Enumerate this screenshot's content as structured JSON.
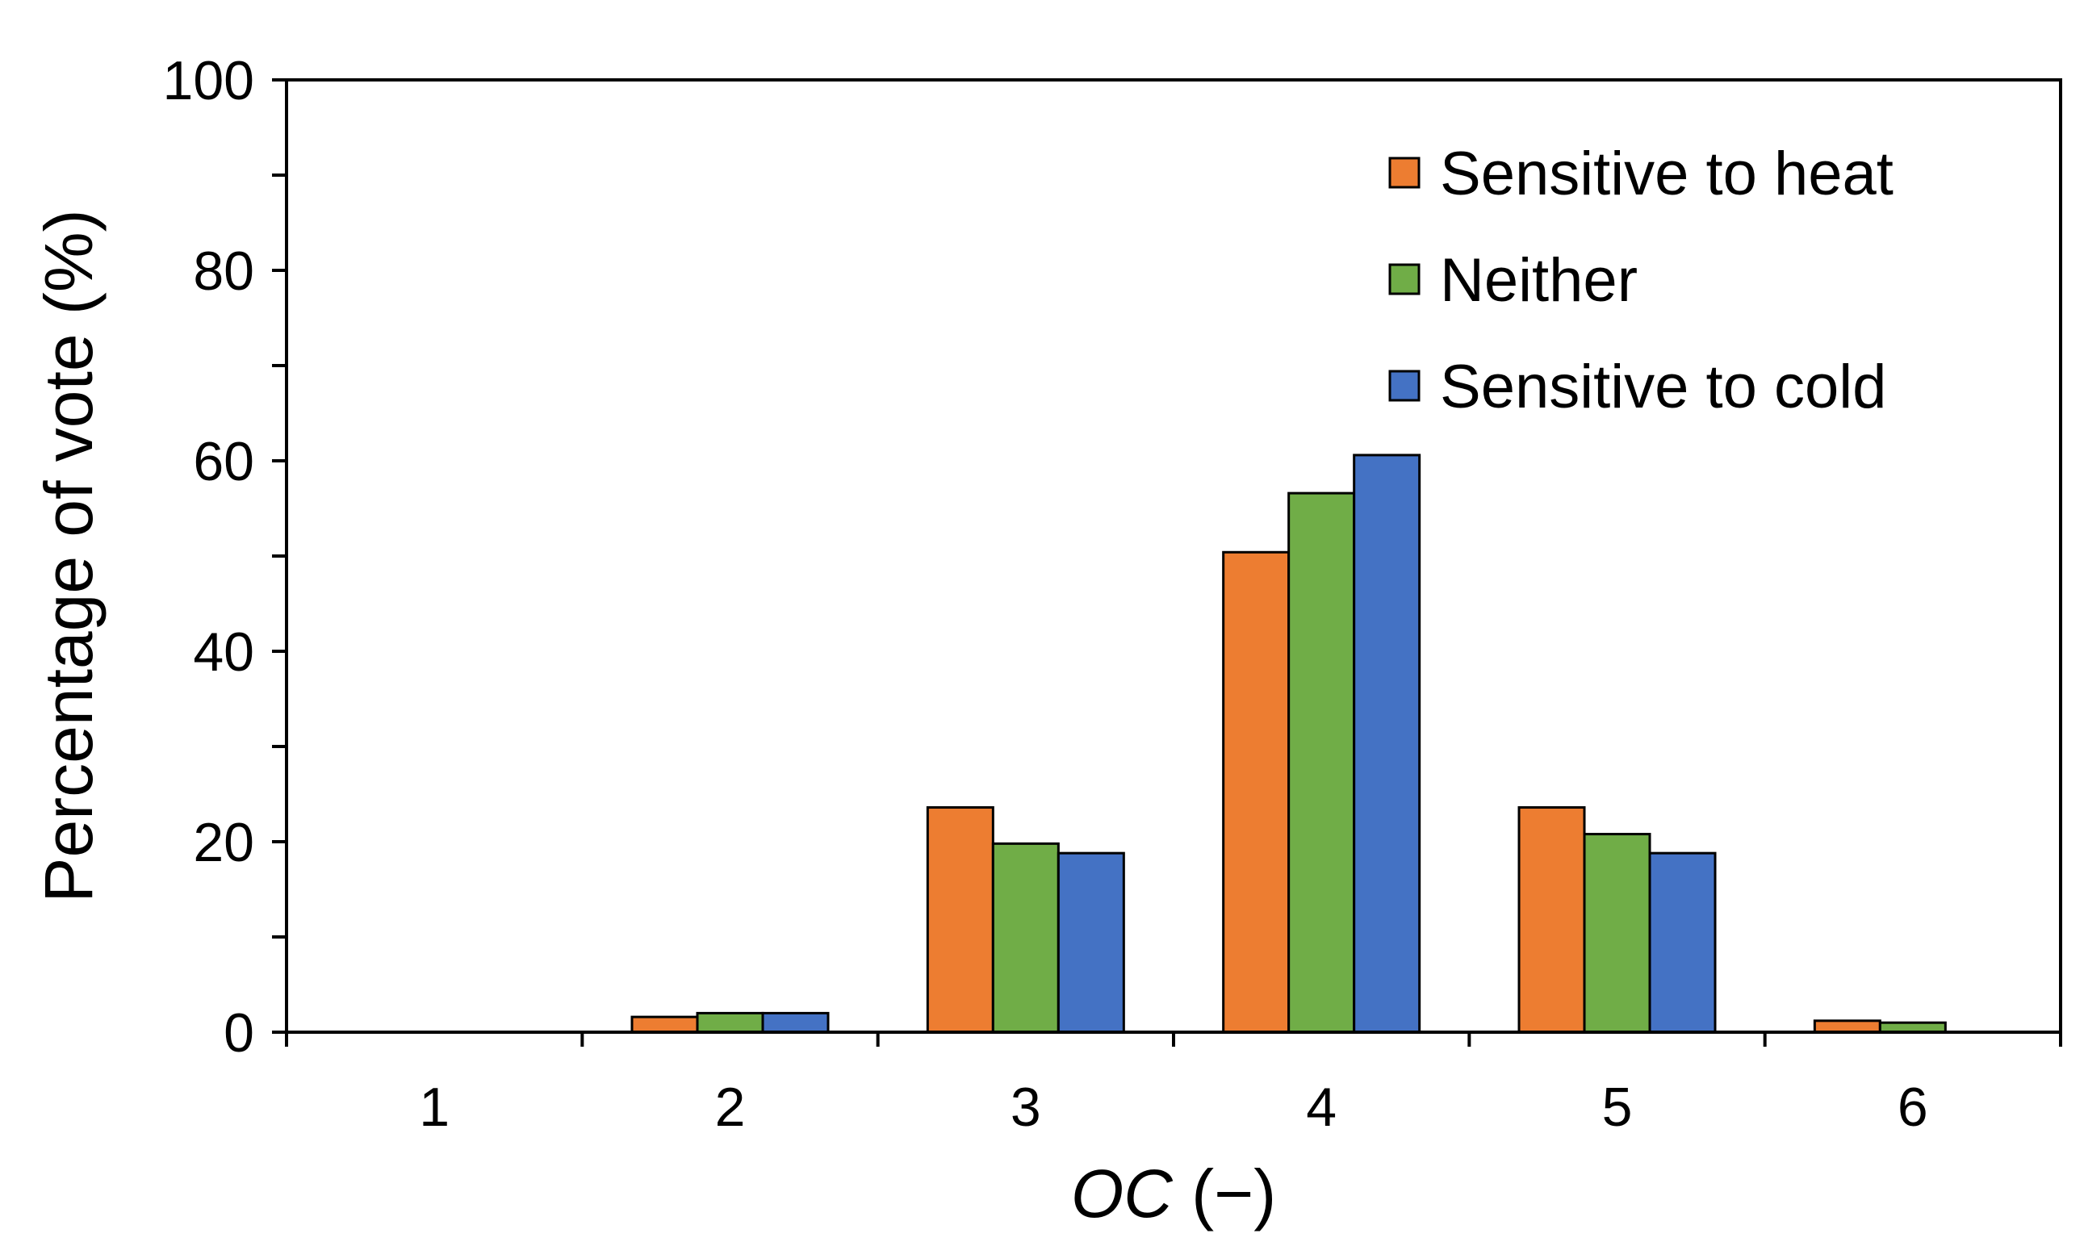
{
  "chart_data": {
    "type": "bar",
    "title": "",
    "xlabel_italic": "OC",
    "xlabel_rest": " (−)",
    "ylabel": "Percentage of vote (%)",
    "ylim": [
      0,
      100
    ],
    "y_major_ticks": [
      0,
      20,
      40,
      60,
      80,
      100
    ],
    "y_minor_step": 10,
    "grid": false,
    "legend_position": "top-right",
    "categories": [
      "1",
      "2",
      "3",
      "4",
      "5",
      "6"
    ],
    "series": [
      {
        "name": "Sensitive to heat",
        "color": "#ED7D31",
        "values": [
          0,
          1.6,
          23.6,
          50.4,
          23.6,
          1.2
        ]
      },
      {
        "name": "Neither",
        "color": "#70AD47",
        "values": [
          0,
          2.0,
          19.8,
          56.6,
          20.8,
          1.0
        ]
      },
      {
        "name": "Sensitive to cold",
        "color": "#4472C4",
        "values": [
          0,
          2.0,
          18.8,
          60.6,
          18.8,
          0
        ]
      }
    ]
  }
}
